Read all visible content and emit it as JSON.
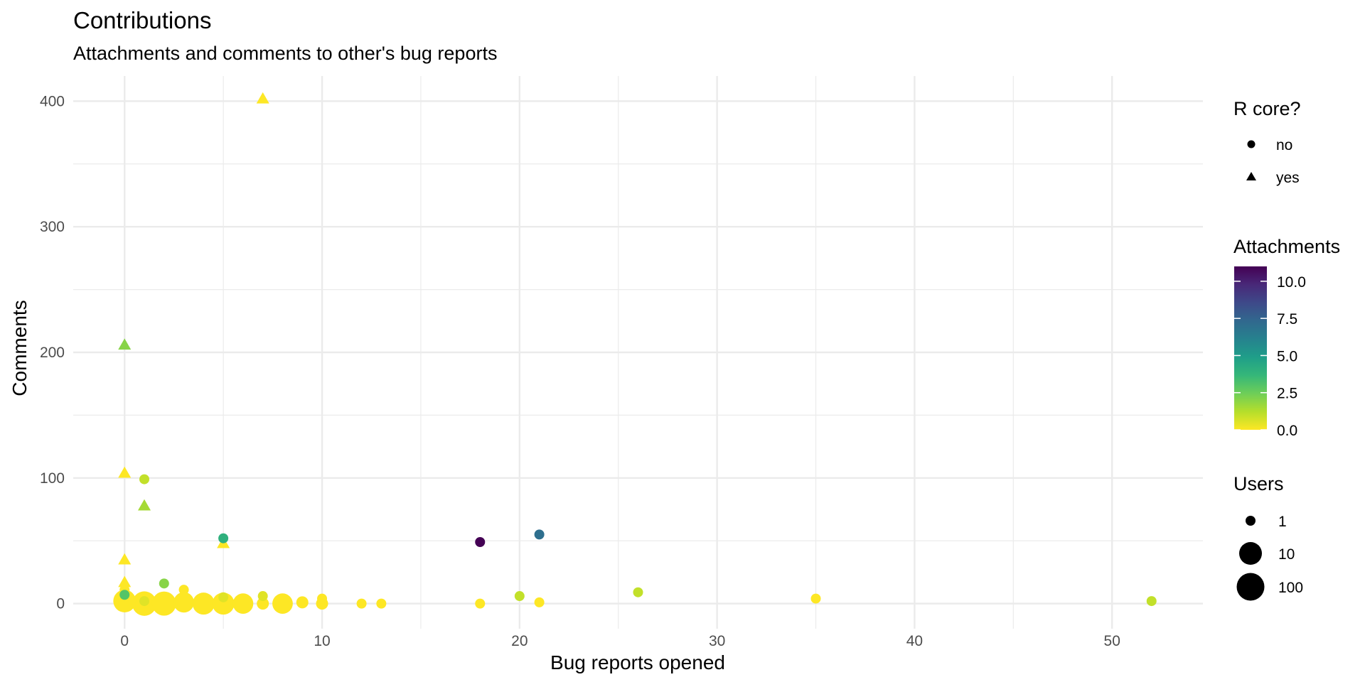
{
  "chart_data": {
    "type": "scatter",
    "title": "Contributions",
    "subtitle": "Attachments and comments to other's bug reports",
    "xlabel": "Bug reports opened",
    "ylabel": "Comments",
    "xlim": [
      -2.6,
      54.6
    ],
    "ylim": [
      -20,
      420
    ],
    "x_ticks": [
      0,
      10,
      20,
      30,
      40,
      50
    ],
    "y_ticks": [
      0,
      100,
      200,
      300,
      400
    ],
    "grid": true,
    "legend_placement": "right",
    "legends": {
      "shape": {
        "title": "R core?",
        "entries": [
          {
            "label": "no",
            "shape": "circle"
          },
          {
            "label": "yes",
            "shape": "triangle"
          }
        ]
      },
      "color": {
        "title": "Attachments",
        "type": "continuous",
        "range": [
          0,
          11
        ],
        "ticks": [
          "0.0",
          "2.5",
          "5.0",
          "7.5",
          "10.0"
        ],
        "tick_values": [
          0,
          2.5,
          5,
          7.5,
          10
        ]
      },
      "size": {
        "title": "Users",
        "entries": [
          {
            "label": "1",
            "value": 1
          },
          {
            "label": "10",
            "value": 10
          },
          {
            "label": "100",
            "value": 100
          }
        ]
      }
    },
    "colors": {
      "viridis": [
        "#fde725",
        "#b5de2b",
        "#6ece58",
        "#35b779",
        "#1f9e89",
        "#26828e",
        "#31688e",
        "#3e4989",
        "#482878",
        "#440154"
      ]
    },
    "points": [
      {
        "x": 7,
        "y": 402,
        "attachments": 0,
        "r_core": "yes",
        "users": 1
      },
      {
        "x": 0,
        "y": 206,
        "attachments": 2,
        "r_core": "yes",
        "users": 1
      },
      {
        "x": 0,
        "y": 104,
        "attachments": 0,
        "r_core": "yes",
        "users": 1
      },
      {
        "x": 1,
        "y": 78,
        "attachments": 1.5,
        "r_core": "yes",
        "users": 1
      },
      {
        "x": 5,
        "y": 48,
        "attachments": 0,
        "r_core": "yes",
        "users": 1
      },
      {
        "x": 0,
        "y": 35,
        "attachments": 0,
        "r_core": "yes",
        "users": 1
      },
      {
        "x": 0,
        "y": 17,
        "attachments": 0,
        "r_core": "yes",
        "users": 1
      },
      {
        "x": 1,
        "y": 99,
        "attachments": 1,
        "r_core": "no",
        "users": 1
      },
      {
        "x": 18,
        "y": 49,
        "attachments": 11,
        "r_core": "no",
        "users": 1
      },
      {
        "x": 21,
        "y": 55,
        "attachments": 7,
        "r_core": "no",
        "users": 1
      },
      {
        "x": 5,
        "y": 52,
        "attachments": 4,
        "r_core": "no",
        "users": 1
      },
      {
        "x": 2,
        "y": 16,
        "attachments": 2,
        "r_core": "no",
        "users": 1
      },
      {
        "x": 3,
        "y": 11,
        "attachments": 0,
        "r_core": "no",
        "users": 1
      },
      {
        "x": 0,
        "y": 11,
        "attachments": 0,
        "r_core": "no",
        "users": 1
      },
      {
        "x": 0,
        "y": 7,
        "attachments": 3,
        "r_core": "no",
        "users": 1
      },
      {
        "x": 0,
        "y": 2,
        "attachments": 0,
        "r_core": "no",
        "users": 60
      },
      {
        "x": 1,
        "y": 0,
        "attachments": 0,
        "r_core": "no",
        "users": 110
      },
      {
        "x": 1,
        "y": 2,
        "attachments": 0.5,
        "r_core": "no",
        "users": 1
      },
      {
        "x": 2,
        "y": 0,
        "attachments": 0,
        "r_core": "no",
        "users": 100
      },
      {
        "x": 3,
        "y": 1,
        "attachments": 0,
        "r_core": "no",
        "users": 30
      },
      {
        "x": 4,
        "y": 0,
        "attachments": 0,
        "r_core": "no",
        "users": 50
      },
      {
        "x": 5,
        "y": 0,
        "attachments": 0,
        "r_core": "no",
        "users": 50
      },
      {
        "x": 5,
        "y": 5,
        "attachments": 0.5,
        "r_core": "no",
        "users": 1
      },
      {
        "x": 6,
        "y": 0,
        "attachments": 0,
        "r_core": "no",
        "users": 30
      },
      {
        "x": 7,
        "y": 6,
        "attachments": 0.5,
        "r_core": "no",
        "users": 1
      },
      {
        "x": 7,
        "y": 0,
        "attachments": 0,
        "r_core": "no",
        "users": 2
      },
      {
        "x": 8,
        "y": 0,
        "attachments": 0,
        "r_core": "no",
        "users": 30
      },
      {
        "x": 9,
        "y": 1,
        "attachments": 0,
        "r_core": "no",
        "users": 2
      },
      {
        "x": 10,
        "y": 4,
        "attachments": 0,
        "r_core": "no",
        "users": 1
      },
      {
        "x": 10,
        "y": 0,
        "attachments": 0,
        "r_core": "no",
        "users": 2
      },
      {
        "x": 12,
        "y": 0,
        "attachments": 0,
        "r_core": "no",
        "users": 1
      },
      {
        "x": 13,
        "y": 0,
        "attachments": 0,
        "r_core": "no",
        "users": 1
      },
      {
        "x": 18,
        "y": 0,
        "attachments": 0,
        "r_core": "no",
        "users": 1
      },
      {
        "x": 20,
        "y": 6,
        "attachments": 1,
        "r_core": "no",
        "users": 1
      },
      {
        "x": 21,
        "y": 1,
        "attachments": 0,
        "r_core": "no",
        "users": 1
      },
      {
        "x": 26,
        "y": 9,
        "attachments": 1,
        "r_core": "no",
        "users": 1
      },
      {
        "x": 35,
        "y": 4,
        "attachments": 0,
        "r_core": "no",
        "users": 1
      },
      {
        "x": 52,
        "y": 2,
        "attachments": 1,
        "r_core": "no",
        "users": 1
      }
    ]
  }
}
